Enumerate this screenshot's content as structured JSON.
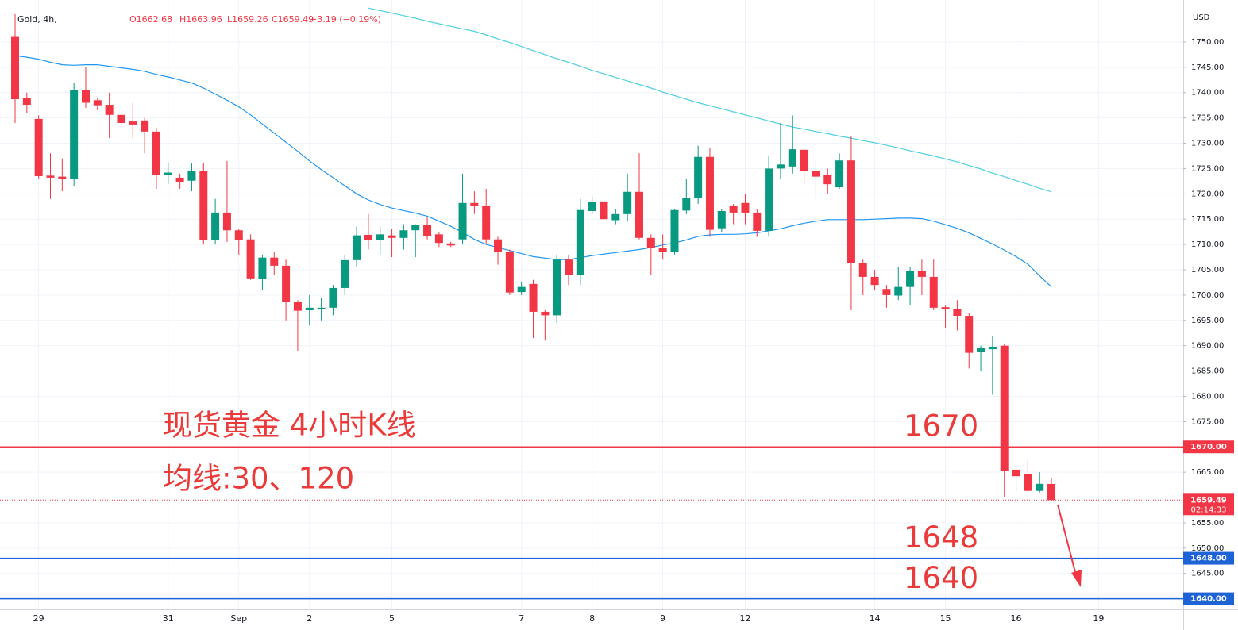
{
  "chart_data": {
    "type": "candlestick",
    "header": {
      "symbol": "Gold, 4h,",
      "values": [
        "O1662.68",
        "H1663.96",
        "L1659.26",
        "C1659.49",
        "−3.19 (−0.19%)"
      ]
    },
    "annotations": [
      "现货黄金 4小时K线",
      "均线:30、120"
    ],
    "axis_label": "USD",
    "categories": [
      null,
      null,
      "29",
      null,
      null,
      null,
      null,
      null,
      null,
      null,
      null,
      null,
      null,
      "31",
      null,
      null,
      null,
      null,
      null,
      "Sep",
      null,
      null,
      null,
      null,
      null,
      "2",
      null,
      null,
      null,
      null,
      null,
      null,
      "5",
      null,
      null,
      null,
      null,
      null,
      null,
      null,
      null,
      null,
      null,
      "7",
      null,
      null,
      null,
      null,
      null,
      "8",
      null,
      null,
      null,
      null,
      null,
      "9",
      null,
      null,
      null,
      null,
      null,
      null,
      "12",
      null,
      null,
      null,
      null,
      null,
      null,
      null,
      null,
      null,
      null,
      "14",
      null,
      null,
      null,
      null,
      null,
      "15",
      null,
      null,
      null,
      null,
      null,
      "16",
      null,
      null,
      null,
      null,
      null,
      null,
      "19",
      null,
      null,
      null,
      null,
      null,
      null,
      null
    ],
    "ylim": [
      1637.9,
      1758.3
    ],
    "yticks": [
      {
        "value": 1645,
        "label": "1645.00"
      },
      {
        "value": 1650,
        "label": "1650.00"
      },
      {
        "value": 1655,
        "label": "1655.00"
      },
      {
        "value": 1665,
        "label": "1665.00"
      },
      {
        "value": 1675,
        "label": "1675.00"
      },
      {
        "value": 1680,
        "label": "1680.00"
      },
      {
        "value": 1685,
        "label": "1685.00"
      },
      {
        "value": 1690,
        "label": "1690.00"
      },
      {
        "value": 1695,
        "label": "1695.00"
      },
      {
        "value": 1700,
        "label": "1700.00"
      },
      {
        "value": 1705,
        "label": "1705.00"
      },
      {
        "value": 1710,
        "label": "1710.00"
      },
      {
        "value": 1715,
        "label": "1715.00"
      },
      {
        "value": 1720,
        "label": "1720.00"
      },
      {
        "value": 1725,
        "label": "1725.00"
      },
      {
        "value": 1730,
        "label": "1730.00"
      },
      {
        "value": 1735,
        "label": "1735.00"
      },
      {
        "value": 1740,
        "label": "1740.00"
      },
      {
        "value": 1745,
        "label": "1745.00"
      },
      {
        "value": 1750,
        "label": "1750.00"
      }
    ],
    "grid": true,
    "candles": {
      "up_color": "#089981",
      "down_color": "#f23645",
      "open": [
        1751,
        1739,
        1734.8,
        1723.6,
        1723.4,
        1723,
        1740.5,
        1738.5,
        1737.6,
        1735.6,
        1734.3,
        1734.5,
        1732.3,
        1723.8,
        1723.2,
        1722.6,
        1724.5,
        1710.8,
        1716.3,
        1712.8,
        1711,
        1703.2,
        1707.4,
        1705.8,
        1698.7,
        1697,
        1697.2,
        1697.5,
        1701.4,
        1706.9,
        1711.9,
        1710.8,
        1711.8,
        1711.3,
        1712.8,
        1713.9,
        1712,
        1710.2,
        1711,
        1718.2,
        1717.7,
        1711,
        1708.5,
        1700.6,
        1702.2,
        1696.7,
        1696,
        1707,
        1703.9,
        1716.6,
        1718.5,
        1714.8,
        1716,
        1720.4,
        1711.3,
        1709.3,
        1708.5,
        1716.7,
        1719.2,
        1727.3,
        1713.2,
        1717.6,
        1718.2,
        1716.3,
        1712.7,
        1725,
        1725.4,
        1728.7,
        1724.6,
        1723.7,
        1721.3,
        1726.6,
        1706.4,
        1703.6,
        1701.2,
        1699.9,
        1701.6,
        1704.7,
        1703.6,
        1697.6,
        1697.2,
        1695.9,
        1688.7,
        1689.3,
        1690,
        1665.5,
        1664.7,
        1661.3,
        1662.68,
        null,
        null,
        null,
        null,
        null,
        null,
        null,
        null,
        null,
        null,
        null
      ],
      "high": [
        1755.5,
        1740,
        1735.5,
        1728,
        1727,
        1742,
        1745,
        1739,
        1740,
        1736,
        1738,
        1735,
        1733,
        1726,
        1724,
        1726,
        1726,
        1719,
        1726.5,
        1713,
        1712,
        1708,
        1708.5,
        1707,
        1699,
        1700,
        1699.5,
        1702,
        1708,
        1713.5,
        1716,
        1713.5,
        1713,
        1714,
        1714,
        1715.5,
        1712.5,
        1710.5,
        1724,
        1720.5,
        1721,
        1711.5,
        1709,
        1702.5,
        1703,
        1697,
        1708,
        1708,
        1719,
        1719.5,
        1720,
        1717,
        1724,
        1728,
        1712,
        1712,
        1717,
        1723,
        1729.5,
        1729,
        1717,
        1718,
        1720,
        1717,
        1727.5,
        1734,
        1735.5,
        1729,
        1727,
        1725,
        1728,
        1731.5,
        1707,
        1705,
        1702,
        1705.5,
        1705.5,
        1707,
        1707,
        1698,
        1699,
        1696.5,
        1690,
        1692,
        1690.3,
        1666,
        1667.5,
        1665,
        1663.96,
        null,
        null,
        null,
        null,
        null,
        null,
        null,
        null,
        null,
        null,
        null
      ],
      "low": [
        1734,
        1736,
        1723,
        1719,
        1720.5,
        1721.5,
        1737,
        1736.5,
        1731,
        1733,
        1731,
        1728,
        1721,
        1722,
        1721,
        1720.5,
        1710,
        1710,
        1710.5,
        1708,
        1703,
        1701,
        1704,
        1695,
        1689,
        1694,
        1695,
        1696,
        1700,
        1705.5,
        1709,
        1708,
        1707.5,
        1709,
        1707.5,
        1711,
        1709.5,
        1709.5,
        1710,
        1716,
        1710,
        1706,
        1700,
        1700,
        1691.5,
        1691,
        1694.5,
        1702,
        1702,
        1716,
        1714.5,
        1714,
        1714.5,
        1711,
        1704,
        1707,
        1708,
        1716,
        1718,
        1711.5,
        1712.5,
        1714,
        1714,
        1711.5,
        1711.5,
        1723,
        1724,
        1722,
        1719,
        1720,
        1721,
        1697,
        1700,
        1701,
        1697.5,
        1699,
        1698,
        1700,
        1697,
        1693.5,
        1693,
        1685.5,
        1685,
        1680.3,
        1660,
        1661,
        1661,
        1661,
        1659.26,
        null,
        null,
        null,
        null,
        null,
        null,
        null,
        null,
        null,
        null,
        null
      ],
      "close": [
        1738.7,
        1737.6,
        1723.5,
        1723.2,
        1723,
        1740.5,
        1738,
        1737.5,
        1735.6,
        1734,
        1733.7,
        1732.3,
        1723.8,
        1724.2,
        1722.4,
        1724.6,
        1710.8,
        1716.3,
        1712.8,
        1710.8,
        1703.3,
        1707.4,
        1705.8,
        1698.7,
        1696.9,
        1697.5,
        1697.5,
        1701.4,
        1706.9,
        1711.8,
        1710.8,
        1712,
        1711.3,
        1712.8,
        1713.9,
        1711.6,
        1710.3,
        1709.8,
        1718.2,
        1717.6,
        1711,
        1708.5,
        1700.5,
        1701.6,
        1696.7,
        1696,
        1707,
        1703.9,
        1716.8,
        1718.4,
        1715,
        1716,
        1720.4,
        1711.3,
        1709.3,
        1708.5,
        1716.8,
        1719.2,
        1727.3,
        1712.9,
        1716.6,
        1716.3,
        1716.3,
        1712.7,
        1725,
        1725.8,
        1728.8,
        1724.5,
        1723.4,
        1721.9,
        1726.6,
        1706.4,
        1703.6,
        1702,
        1700,
        1701.6,
        1704.7,
        1703.6,
        1697.5,
        1697.2,
        1695.9,
        1688.6,
        1689.5,
        1689.8,
        1665.2,
        1664.2,
        1661.3,
        1662.7,
        1659.49,
        null,
        null,
        null,
        null,
        null,
        null,
        null,
        null,
        null,
        null,
        null
      ]
    },
    "series": [
      {
        "color": "#2196f3",
        "values": [
          1747.3,
          1747,
          1746.6,
          1746,
          1745.5,
          1745.4,
          1745.5,
          1745.5,
          1745.2,
          1744.9,
          1744.6,
          1744.2,
          1743.6,
          1743.1,
          1742.5,
          1741.9,
          1740.9,
          1739.7,
          1738.5,
          1737.2,
          1735.6,
          1733.8,
          1732,
          1730.2,
          1728.4,
          1726.5,
          1724.8,
          1723.2,
          1721.6,
          1720,
          1718.8,
          1717.9,
          1717.2,
          1716.7,
          1716.2,
          1715.6,
          1714.6,
          1713.6,
          1712.4,
          1711,
          1710,
          1709.4,
          1708.8,
          1708.2,
          1707.6,
          1707.3,
          1707,
          1707,
          1707.4,
          1707.8,
          1708.1,
          1708.4,
          1708.7,
          1709,
          1709.4,
          1709.9,
          1710.3,
          1710.9,
          1711.6,
          1711.9,
          1712,
          1712,
          1712.1,
          1712.3,
          1712.7,
          1713.1,
          1713.7,
          1714.2,
          1714.6,
          1714.9,
          1714.9,
          1714.9,
          1714.9,
          1715,
          1715.1,
          1715.2,
          1715.2,
          1715.1,
          1714.6,
          1713.9,
          1713.2,
          1712.3,
          1711.2,
          1710.1,
          1708.9,
          1707.6,
          1706.1,
          1703.8,
          1701.6,
          null,
          null,
          null,
          null,
          null,
          null,
          null,
          null,
          null,
          null,
          null
        ]
      },
      {
        "color": "#4dd0e1",
        "values": [
          null,
          null,
          null,
          null,
          null,
          null,
          null,
          null,
          null,
          null,
          null,
          null,
          null,
          null,
          null,
          null,
          null,
          null,
          null,
          null,
          null,
          null,
          null,
          null,
          null,
          null,
          null,
          null,
          null,
          null,
          1756.7,
          1756.2,
          1755.7,
          1755.2,
          1754.7,
          1754.1,
          1753.6,
          1753.1,
          1752.6,
          1752.1,
          1751.4,
          1750.6,
          1749.9,
          1749.1,
          1748.3,
          1747.5,
          1746.7,
          1746,
          1745.2,
          1744.4,
          1743.7,
          1743,
          1742.3,
          1741.6,
          1740.9,
          1740.1,
          1739.4,
          1738.7,
          1738,
          1737.4,
          1736.8,
          1736.2,
          1735.6,
          1735,
          1734.4,
          1733.8,
          1733.2,
          1732.8,
          1732.3,
          1731.9,
          1731.4,
          1731,
          1730.5,
          1730.1,
          1729.6,
          1729.1,
          1728.5,
          1728,
          1727.5,
          1726.9,
          1726.3,
          1725.6,
          1724.9,
          1724.1,
          1723.4,
          1722.6,
          1721.9,
          1721.1,
          1720.4,
          null,
          null,
          null,
          null,
          null,
          null,
          null,
          null,
          null,
          null,
          null
        ]
      }
    ],
    "hlines": [
      {
        "value": 1670,
        "label": "1670.00",
        "annotation": "1670",
        "color": "#f23645"
      },
      {
        "value": 1648,
        "label": "1648.00",
        "annotation": "1648",
        "color": "#1e63d6"
      },
      {
        "value": 1640,
        "label": "1640.00",
        "annotation": "1640",
        "color": "#1e63d6"
      }
    ],
    "last_price": {
      "value": 1659.49,
      "label": "1659.49",
      "countdown": "02:14:33",
      "color": "#f23645"
    }
  }
}
